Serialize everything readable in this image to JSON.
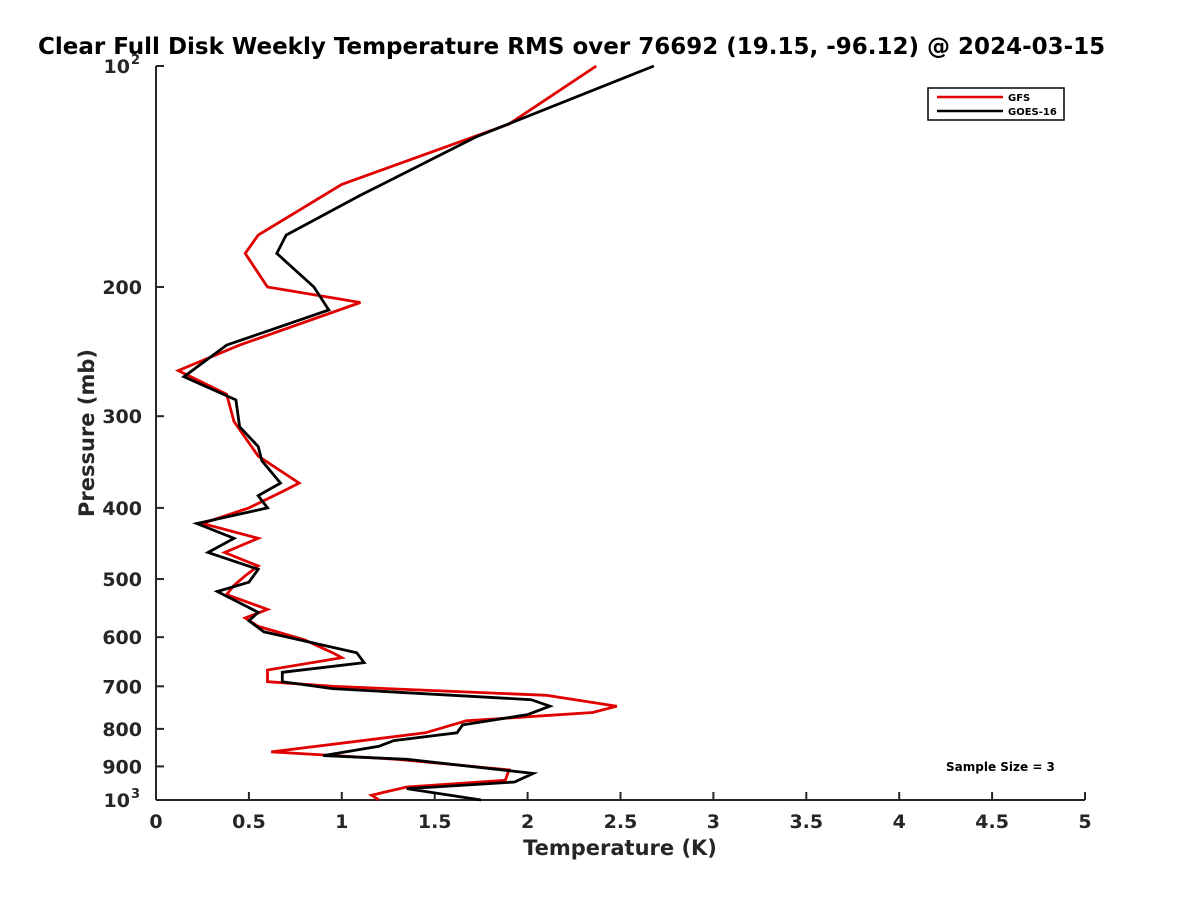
{
  "chart_data": {
    "type": "line",
    "title": "Clear Full Disk Weekly Temperature RMS over 76692 (19.15, -96.12) @ 2024-03-15",
    "xlabel": "Temperature (K)",
    "ylabel": "Pressure (mb)",
    "xlim": [
      0,
      5
    ],
    "ylim": [
      1000,
      100
    ],
    "yscale": "log",
    "xticks": [
      0,
      0.5,
      1,
      1.5,
      2,
      2.5,
      3,
      3.5,
      4,
      4.5,
      5
    ],
    "xtick_labels": [
      "0",
      "0.5",
      "1",
      "1.5",
      "2",
      "2.5",
      "3",
      "3.5",
      "4",
      "4.5",
      "5"
    ],
    "yticks": [
      {
        "value": 100,
        "base": "10",
        "exp": "2"
      },
      {
        "value": 200,
        "label": "200"
      },
      {
        "value": 300,
        "label": "300"
      },
      {
        "value": 400,
        "label": "400"
      },
      {
        "value": 500,
        "label": "500"
      },
      {
        "value": 600,
        "label": "600"
      },
      {
        "value": 700,
        "label": "700"
      },
      {
        "value": 800,
        "label": "800"
      },
      {
        "value": 900,
        "label": "900"
      },
      {
        "value": 1000,
        "base": "10",
        "exp": "3"
      }
    ],
    "legend_position": "top-right",
    "annotation": "Sample Size = 3",
    "series": [
      {
        "name": "GFS",
        "color": "#e00000",
        "points": [
          [
            2.37,
            100
          ],
          [
            1.9,
            120
          ],
          [
            1.0,
            145
          ],
          [
            0.55,
            170
          ],
          [
            0.48,
            180
          ],
          [
            0.6,
            200
          ],
          [
            1.1,
            210
          ],
          [
            0.45,
            240
          ],
          [
            0.12,
            260
          ],
          [
            0.38,
            280
          ],
          [
            0.42,
            305
          ],
          [
            0.55,
            340
          ],
          [
            0.77,
            370
          ],
          [
            0.68,
            380
          ],
          [
            0.5,
            400
          ],
          [
            0.25,
            420
          ],
          [
            0.55,
            440
          ],
          [
            0.37,
            460
          ],
          [
            0.55,
            480
          ],
          [
            0.48,
            495
          ],
          [
            0.42,
            510
          ],
          [
            0.38,
            525
          ],
          [
            0.6,
            550
          ],
          [
            0.48,
            565
          ],
          [
            0.55,
            580
          ],
          [
            0.8,
            605
          ],
          [
            0.95,
            630
          ],
          [
            1.0,
            640
          ],
          [
            0.6,
            665
          ],
          [
            0.6,
            690
          ],
          [
            0.95,
            700
          ],
          [
            2.1,
            720
          ],
          [
            2.48,
            745
          ],
          [
            2.35,
            760
          ],
          [
            1.67,
            780
          ],
          [
            1.45,
            810
          ],
          [
            0.62,
            860
          ],
          [
            1.3,
            880
          ],
          [
            1.9,
            910
          ],
          [
            1.88,
            940
          ],
          [
            1.35,
            960
          ],
          [
            1.16,
            985
          ],
          [
            1.2,
            1000
          ]
        ]
      },
      {
        "name": "GOES-16",
        "color": "#000000",
        "points": [
          [
            2.68,
            100
          ],
          [
            1.72,
            125
          ],
          [
            1.1,
            150
          ],
          [
            0.7,
            170
          ],
          [
            0.65,
            180
          ],
          [
            0.85,
            200
          ],
          [
            0.93,
            215
          ],
          [
            0.38,
            240
          ],
          [
            0.15,
            265
          ],
          [
            0.43,
            285
          ],
          [
            0.45,
            310
          ],
          [
            0.55,
            330
          ],
          [
            0.57,
            345
          ],
          [
            0.67,
            370
          ],
          [
            0.55,
            385
          ],
          [
            0.6,
            400
          ],
          [
            0.22,
            420
          ],
          [
            0.42,
            440
          ],
          [
            0.28,
            460
          ],
          [
            0.55,
            485
          ],
          [
            0.5,
            505
          ],
          [
            0.33,
            520
          ],
          [
            0.55,
            555
          ],
          [
            0.5,
            570
          ],
          [
            0.58,
            590
          ],
          [
            1.08,
            630
          ],
          [
            1.12,
            650
          ],
          [
            0.68,
            670
          ],
          [
            0.68,
            690
          ],
          [
            0.95,
            705
          ],
          [
            2.02,
            730
          ],
          [
            2.12,
            745
          ],
          [
            2.0,
            765
          ],
          [
            1.65,
            790
          ],
          [
            1.62,
            810
          ],
          [
            1.28,
            830
          ],
          [
            1.2,
            845
          ],
          [
            0.9,
            870
          ],
          [
            1.35,
            880
          ],
          [
            2.03,
            920
          ],
          [
            1.93,
            945
          ],
          [
            1.5,
            960
          ],
          [
            1.35,
            965
          ],
          [
            1.75,
            1000
          ]
        ]
      }
    ]
  }
}
